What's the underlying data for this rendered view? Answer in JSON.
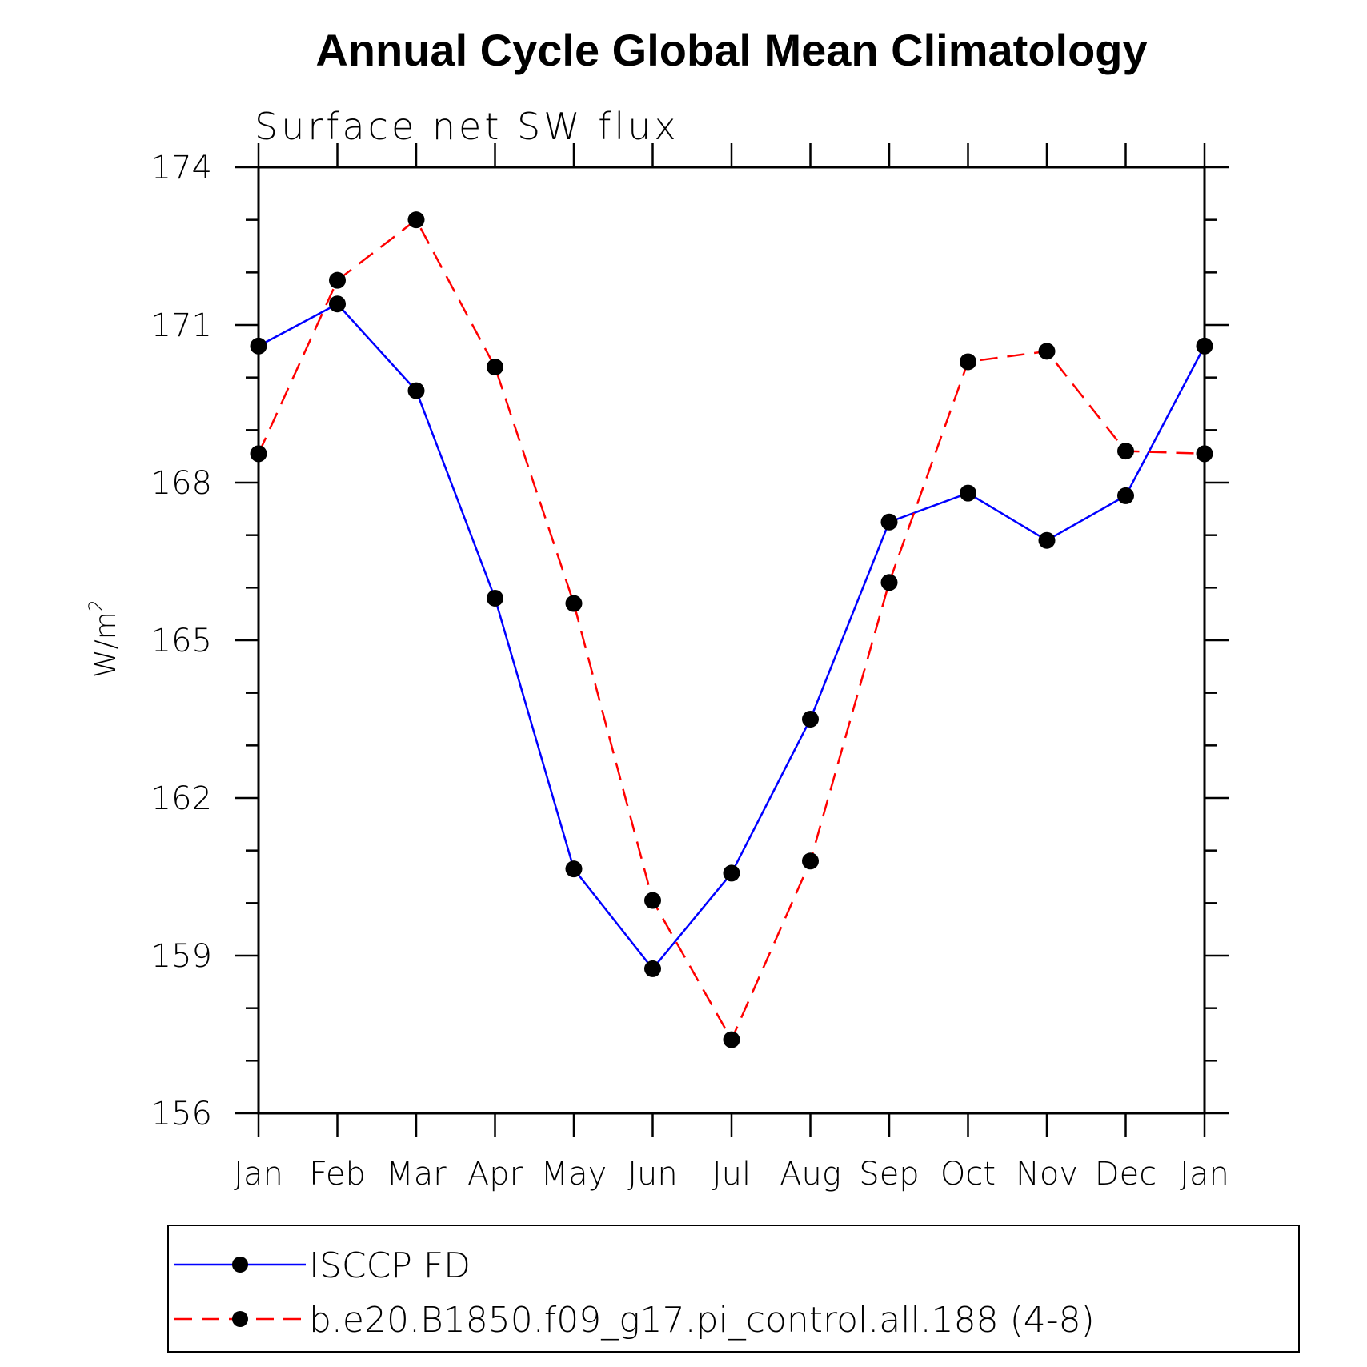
{
  "chart_data": {
    "type": "line",
    "title": "Annual Cycle Global Mean Climatology",
    "subtitle": "Surface net SW flux",
    "ylabel": "W/m",
    "ylabel_sup": "2",
    "xlabel": "",
    "categories": [
      "Jan",
      "Feb",
      "Mar",
      "Apr",
      "May",
      "Jun",
      "Jul",
      "Aug",
      "Sep",
      "Oct",
      "Nov",
      "Dec",
      "Jan"
    ],
    "ylim": [
      156,
      174
    ],
    "yticks": [
      156,
      159,
      162,
      165,
      168,
      171,
      174
    ],
    "yticks_labels": [
      "156",
      "159",
      "162",
      "165",
      "168",
      "171",
      "174"
    ],
    "grid": false,
    "legend_position": "bottom",
    "series": [
      {
        "name": "ISCCP FD",
        "color": "#0000ff",
        "dash": "solid",
        "values": [
          170.6,
          171.4,
          169.75,
          165.8,
          160.65,
          158.75,
          160.57,
          163.5,
          167.25,
          167.8,
          166.9,
          167.75,
          170.6
        ]
      },
      {
        "name": "b.e20.B1850.f09_g17.pi_control.all.188 (4-8)",
        "color": "#ff0000",
        "dash": "dashed",
        "values": [
          168.55,
          171.85,
          173.0,
          170.2,
          165.7,
          160.05,
          157.4,
          160.8,
          166.1,
          170.3,
          170.5,
          168.6,
          168.55
        ]
      }
    ]
  }
}
